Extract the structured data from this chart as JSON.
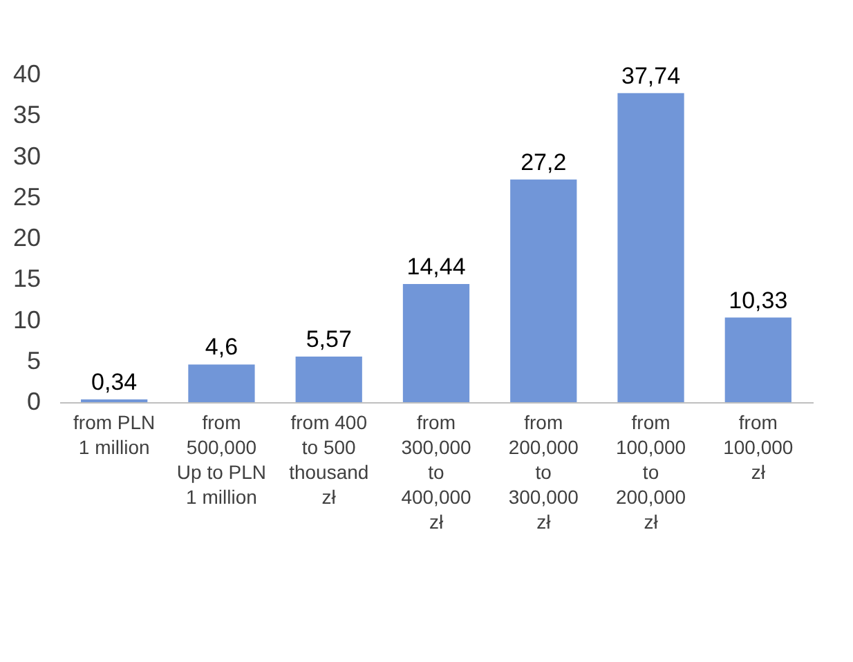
{
  "chart_data": {
    "type": "bar",
    "categories": [
      "from PLN\n1 million",
      "from\n500,000\nUp to PLN\n1 million",
      "from 400\nto 500\nthousand\nzł",
      "from\n300,000\nto\n400,000\nzł",
      "from\n200,000\nto\n300,000\nzł",
      "from\n100,000\nto\n200,000\nzł",
      "from\n100,000\nzł"
    ],
    "values": [
      0.34,
      4.6,
      5.57,
      14.44,
      27.2,
      37.74,
      10.33
    ],
    "value_labels": [
      "0,34",
      "4,6",
      "5,57",
      "14,44",
      "27,2",
      "37,74",
      "10,33"
    ],
    "color": "#7196d8",
    "ylim": [
      0,
      40
    ],
    "yticks": [
      0,
      5,
      10,
      15,
      20,
      25,
      30,
      35,
      40
    ],
    "grid": false
  }
}
